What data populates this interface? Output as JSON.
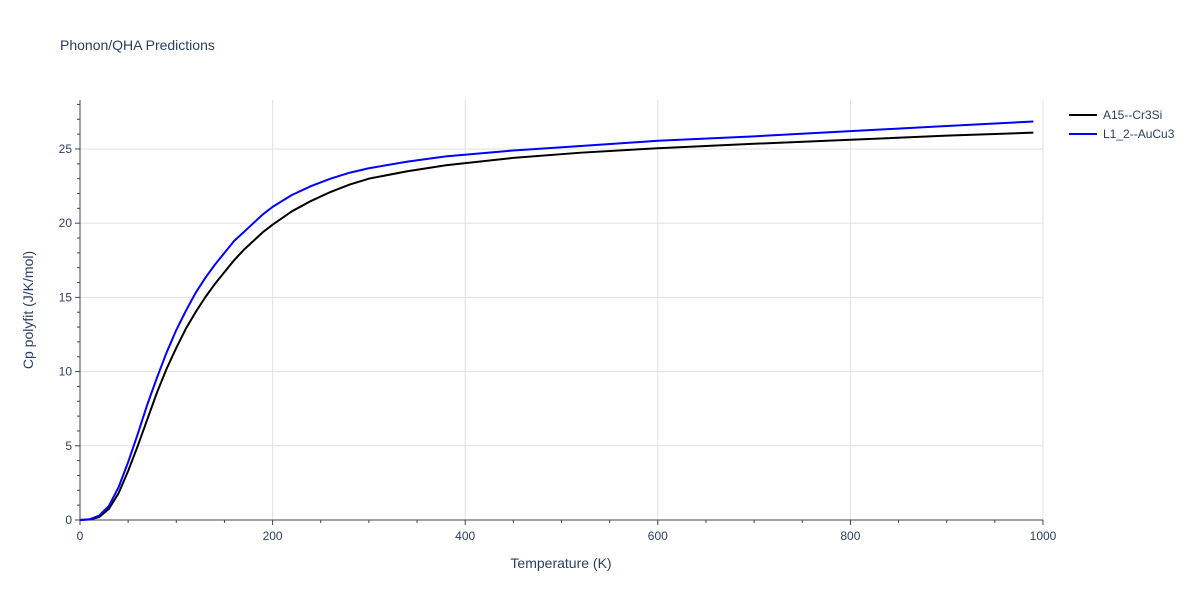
{
  "chart_data": {
    "type": "line",
    "title": "Phonon/QHA Predictions",
    "xlabel": "Temperature (K)",
    "ylabel": "Cp polyfit (J/K/mol)",
    "xlim": [
      0,
      1000
    ],
    "ylim": [
      0,
      28.3
    ],
    "xticks": [
      0,
      200,
      400,
      600,
      800,
      1000
    ],
    "yticks": [
      0,
      5,
      10,
      15,
      20,
      25
    ],
    "grid": true,
    "legend_position": "top-right",
    "series": [
      {
        "name": "A15--Cr3Si",
        "color": "#000000",
        "x": [
          0,
          10,
          20,
          30,
          40,
          50,
          60,
          70,
          80,
          90,
          100,
          110,
          120,
          130,
          140,
          150,
          160,
          170,
          180,
          190,
          200,
          220,
          240,
          260,
          280,
          300,
          340,
          380,
          450,
          520,
          600,
          700,
          800,
          900,
          990
        ],
        "y": [
          0,
          0.03,
          0.2,
          0.75,
          1.8,
          3.3,
          5.0,
          6.8,
          8.6,
          10.2,
          11.6,
          12.9,
          14.0,
          15.0,
          15.9,
          16.7,
          17.5,
          18.2,
          18.8,
          19.4,
          19.9,
          20.8,
          21.5,
          22.1,
          22.6,
          23.0,
          23.5,
          23.9,
          24.4,
          24.75,
          25.05,
          25.35,
          25.62,
          25.9,
          26.1
        ]
      },
      {
        "name": "L1_2--AuCu3",
        "color": "#0000ff",
        "x": [
          0,
          10,
          20,
          30,
          40,
          50,
          60,
          70,
          80,
          90,
          100,
          110,
          120,
          130,
          140,
          150,
          160,
          170,
          180,
          190,
          200,
          220,
          240,
          260,
          280,
          300,
          340,
          380,
          450,
          520,
          600,
          700,
          800,
          900,
          990
        ],
        "y": [
          0,
          0.05,
          0.3,
          0.95,
          2.2,
          3.9,
          5.8,
          7.8,
          9.6,
          11.3,
          12.8,
          14.1,
          15.3,
          16.3,
          17.2,
          18.0,
          18.8,
          19.4,
          20.0,
          20.6,
          21.1,
          21.9,
          22.5,
          23.0,
          23.4,
          23.7,
          24.15,
          24.5,
          24.9,
          25.2,
          25.55,
          25.85,
          26.2,
          26.55,
          26.85
        ]
      }
    ]
  }
}
